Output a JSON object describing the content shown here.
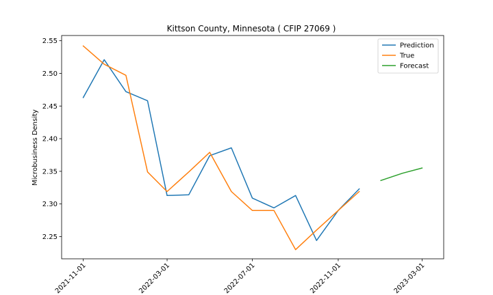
{
  "chart_data": {
    "type": "line",
    "title": "Kittson County, Minnesota ( CFIP 27069 )",
    "xlabel": "",
    "ylabel": "Microbusiness Density",
    "x_ticks": [
      "2021-11-01",
      "2022-03-01",
      "2022-07-01",
      "2022-11-01",
      "2023-03-01"
    ],
    "y_ticks": [
      "2.25",
      "2.30",
      "2.35",
      "2.40",
      "2.45",
      "2.50",
      "2.55"
    ],
    "ylim": [
      2.216,
      2.558
    ],
    "xlim": [
      "2021-10-01",
      "2023-04-01"
    ],
    "grid": false,
    "legend_position": "upper right",
    "series": [
      {
        "name": "Prediction",
        "color": "#1f77b4",
        "x": [
          "2021-11-01",
          "2021-12-01",
          "2022-01-01",
          "2022-02-01",
          "2022-03-01",
          "2022-04-01",
          "2022-05-01",
          "2022-06-01",
          "2022-07-01",
          "2022-08-01",
          "2022-09-01",
          "2022-10-01",
          "2022-11-01",
          "2022-12-01"
        ],
        "y": [
          2.463,
          2.521,
          2.472,
          2.458,
          2.313,
          2.314,
          2.374,
          2.386,
          2.309,
          2.294,
          2.313,
          2.244,
          2.29,
          2.323
        ]
      },
      {
        "name": "True",
        "color": "#ff7f0e",
        "x": [
          "2021-11-01",
          "2021-12-01",
          "2022-01-01",
          "2022-02-01",
          "2022-03-01",
          "2022-04-01",
          "2022-05-01",
          "2022-06-01",
          "2022-07-01",
          "2022-08-01",
          "2022-09-01",
          "2022-10-01",
          "2022-11-01",
          "2022-12-01"
        ],
        "y": [
          2.542,
          2.514,
          2.497,
          2.349,
          2.319,
          2.349,
          2.379,
          2.319,
          2.29,
          2.29,
          2.23,
          2.26,
          2.29,
          2.319
        ]
      },
      {
        "name": "Forecast",
        "color": "#2ca02c",
        "x": [
          "2023-01-01",
          "2023-02-01",
          "2023-03-01"
        ],
        "y": [
          2.336,
          2.347,
          2.355
        ]
      }
    ]
  }
}
